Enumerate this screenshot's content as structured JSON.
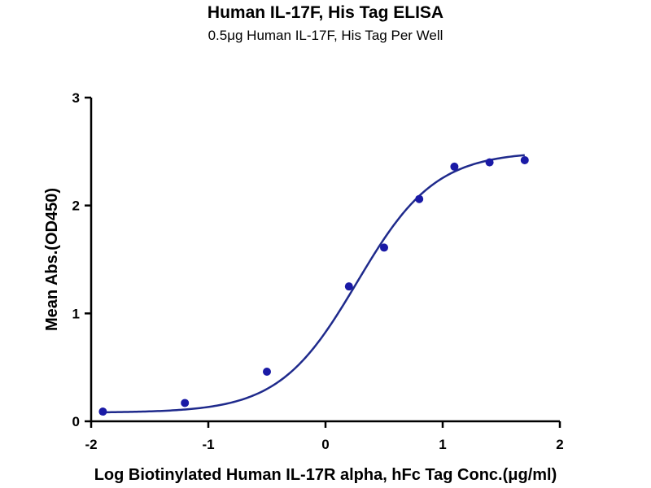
{
  "chart_data": {
    "type": "scatter",
    "title": "Human IL-17F, His Tag ELISA",
    "subtitle": "0.5μg Human IL-17F, His Tag Per Well",
    "xlabel": "Log Biotinylated Human IL-17R alpha, hFc Tag Conc.(μg/ml)",
    "ylabel": "Mean Abs.(OD450)",
    "xlim": [
      -2,
      2
    ],
    "ylim": [
      0,
      3
    ],
    "x_ticks": [
      -2,
      -1,
      0,
      1,
      2
    ],
    "y_ticks": [
      0,
      1,
      2,
      3
    ],
    "grid": false,
    "fit": "sigmoidal",
    "color": "#1a1aa6",
    "curve_color": "#1f2a8c",
    "series": [
      {
        "x": [
          -1.9,
          -1.2,
          -0.5,
          0.2,
          0.5,
          0.8,
          1.1,
          1.4,
          1.7
        ],
        "y": [
          0.09,
          0.17,
          0.46,
          1.25,
          1.61,
          2.06,
          2.36,
          2.4,
          2.42
        ]
      }
    ]
  }
}
